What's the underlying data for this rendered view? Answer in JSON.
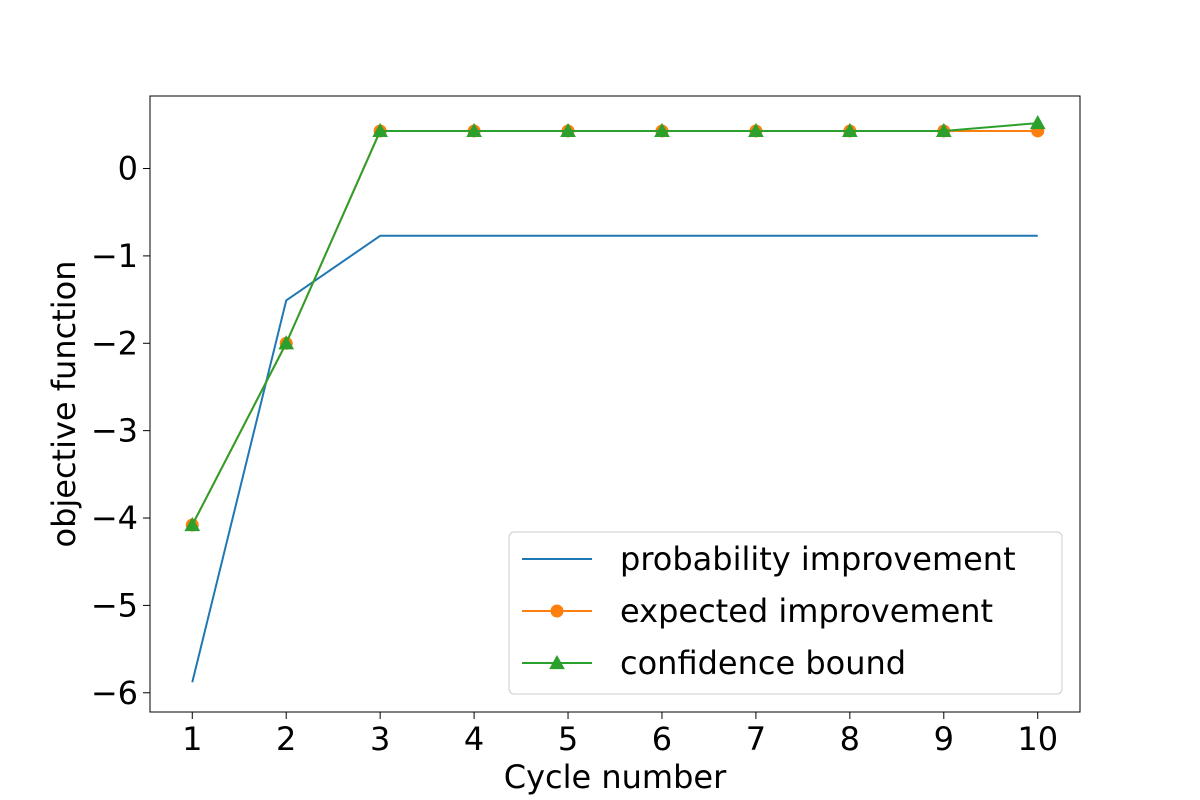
{
  "chart_data": {
    "type": "line",
    "title": "",
    "xlabel": "Cycle number",
    "ylabel": "objective function",
    "x": [
      1,
      2,
      3,
      4,
      5,
      6,
      7,
      8,
      9,
      10
    ],
    "xlim": [
      0.55,
      10.45
    ],
    "ylim": [
      -6.22,
      0.83
    ],
    "xticks": [
      1,
      2,
      3,
      4,
      5,
      6,
      7,
      8,
      9,
      10
    ],
    "xtick_labels": [
      "1",
      "2",
      "3",
      "4",
      "5",
      "6",
      "7",
      "8",
      "9",
      "10"
    ],
    "yticks": [
      -6,
      -5,
      -4,
      -3,
      -2,
      -1,
      0
    ],
    "ytick_labels": [
      "−6",
      "−5",
      "−4",
      "−3",
      "−2",
      "−1",
      "0"
    ],
    "grid": false,
    "legend_position": "lower-right",
    "series": [
      {
        "name": "probability improvement",
        "color": "#1f77b4",
        "marker": "none",
        "values": [
          -5.88,
          -1.51,
          -0.77,
          -0.77,
          -0.77,
          -0.77,
          -0.77,
          -0.77,
          -0.77,
          -0.77
        ]
      },
      {
        "name": "expected improvement",
        "color": "#ff7f0e",
        "marker": "circle",
        "values": [
          -4.08,
          -2.0,
          0.43,
          0.43,
          0.43,
          0.43,
          0.43,
          0.43,
          0.43,
          0.43
        ]
      },
      {
        "name": "confidence bound",
        "color": "#2ca02c",
        "marker": "triangle",
        "values": [
          -4.08,
          -2.0,
          0.43,
          0.43,
          0.43,
          0.43,
          0.43,
          0.43,
          0.43,
          0.52
        ]
      }
    ]
  }
}
